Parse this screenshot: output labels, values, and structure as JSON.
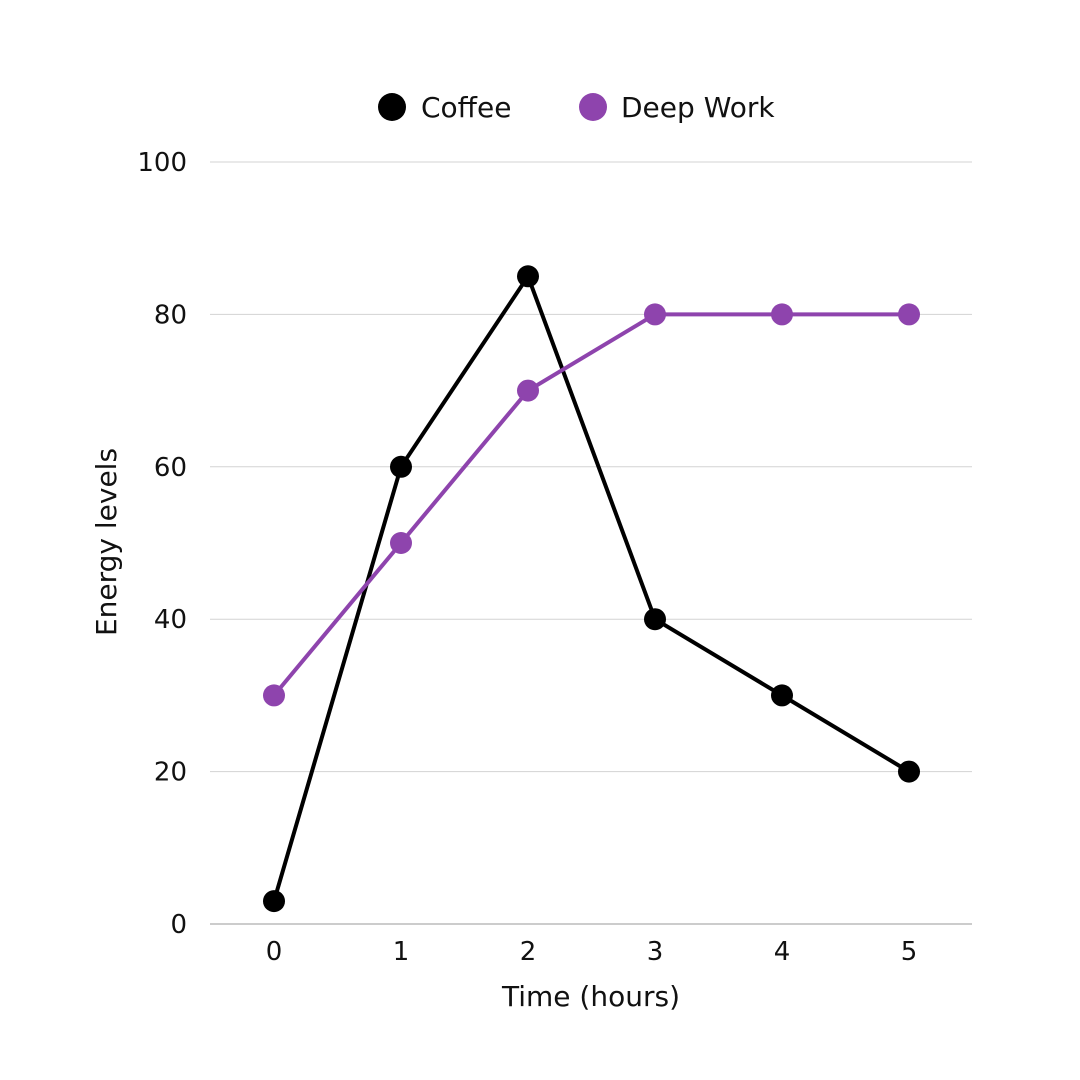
{
  "chart_data": {
    "type": "line",
    "categories": [
      "0",
      "1",
      "2",
      "3",
      "4",
      "5"
    ],
    "x": [
      0,
      1,
      2,
      3,
      4,
      5
    ],
    "series": [
      {
        "name": "Coffee",
        "color": "#000000",
        "values": [
          3,
          60,
          85,
          40,
          30,
          20
        ]
      },
      {
        "name": "Deep Work",
        "color": "#8e44ad",
        "values": [
          30,
          50,
          70,
          80,
          80,
          80
        ]
      }
    ],
    "xlabel": "Time (hours)",
    "ylabel": "Energy levels",
    "ylim": [
      0,
      100
    ],
    "yticks": [
      "0",
      "20",
      "40",
      "60",
      "80",
      "100"
    ],
    "grid": true,
    "legend_position": "top-center"
  }
}
